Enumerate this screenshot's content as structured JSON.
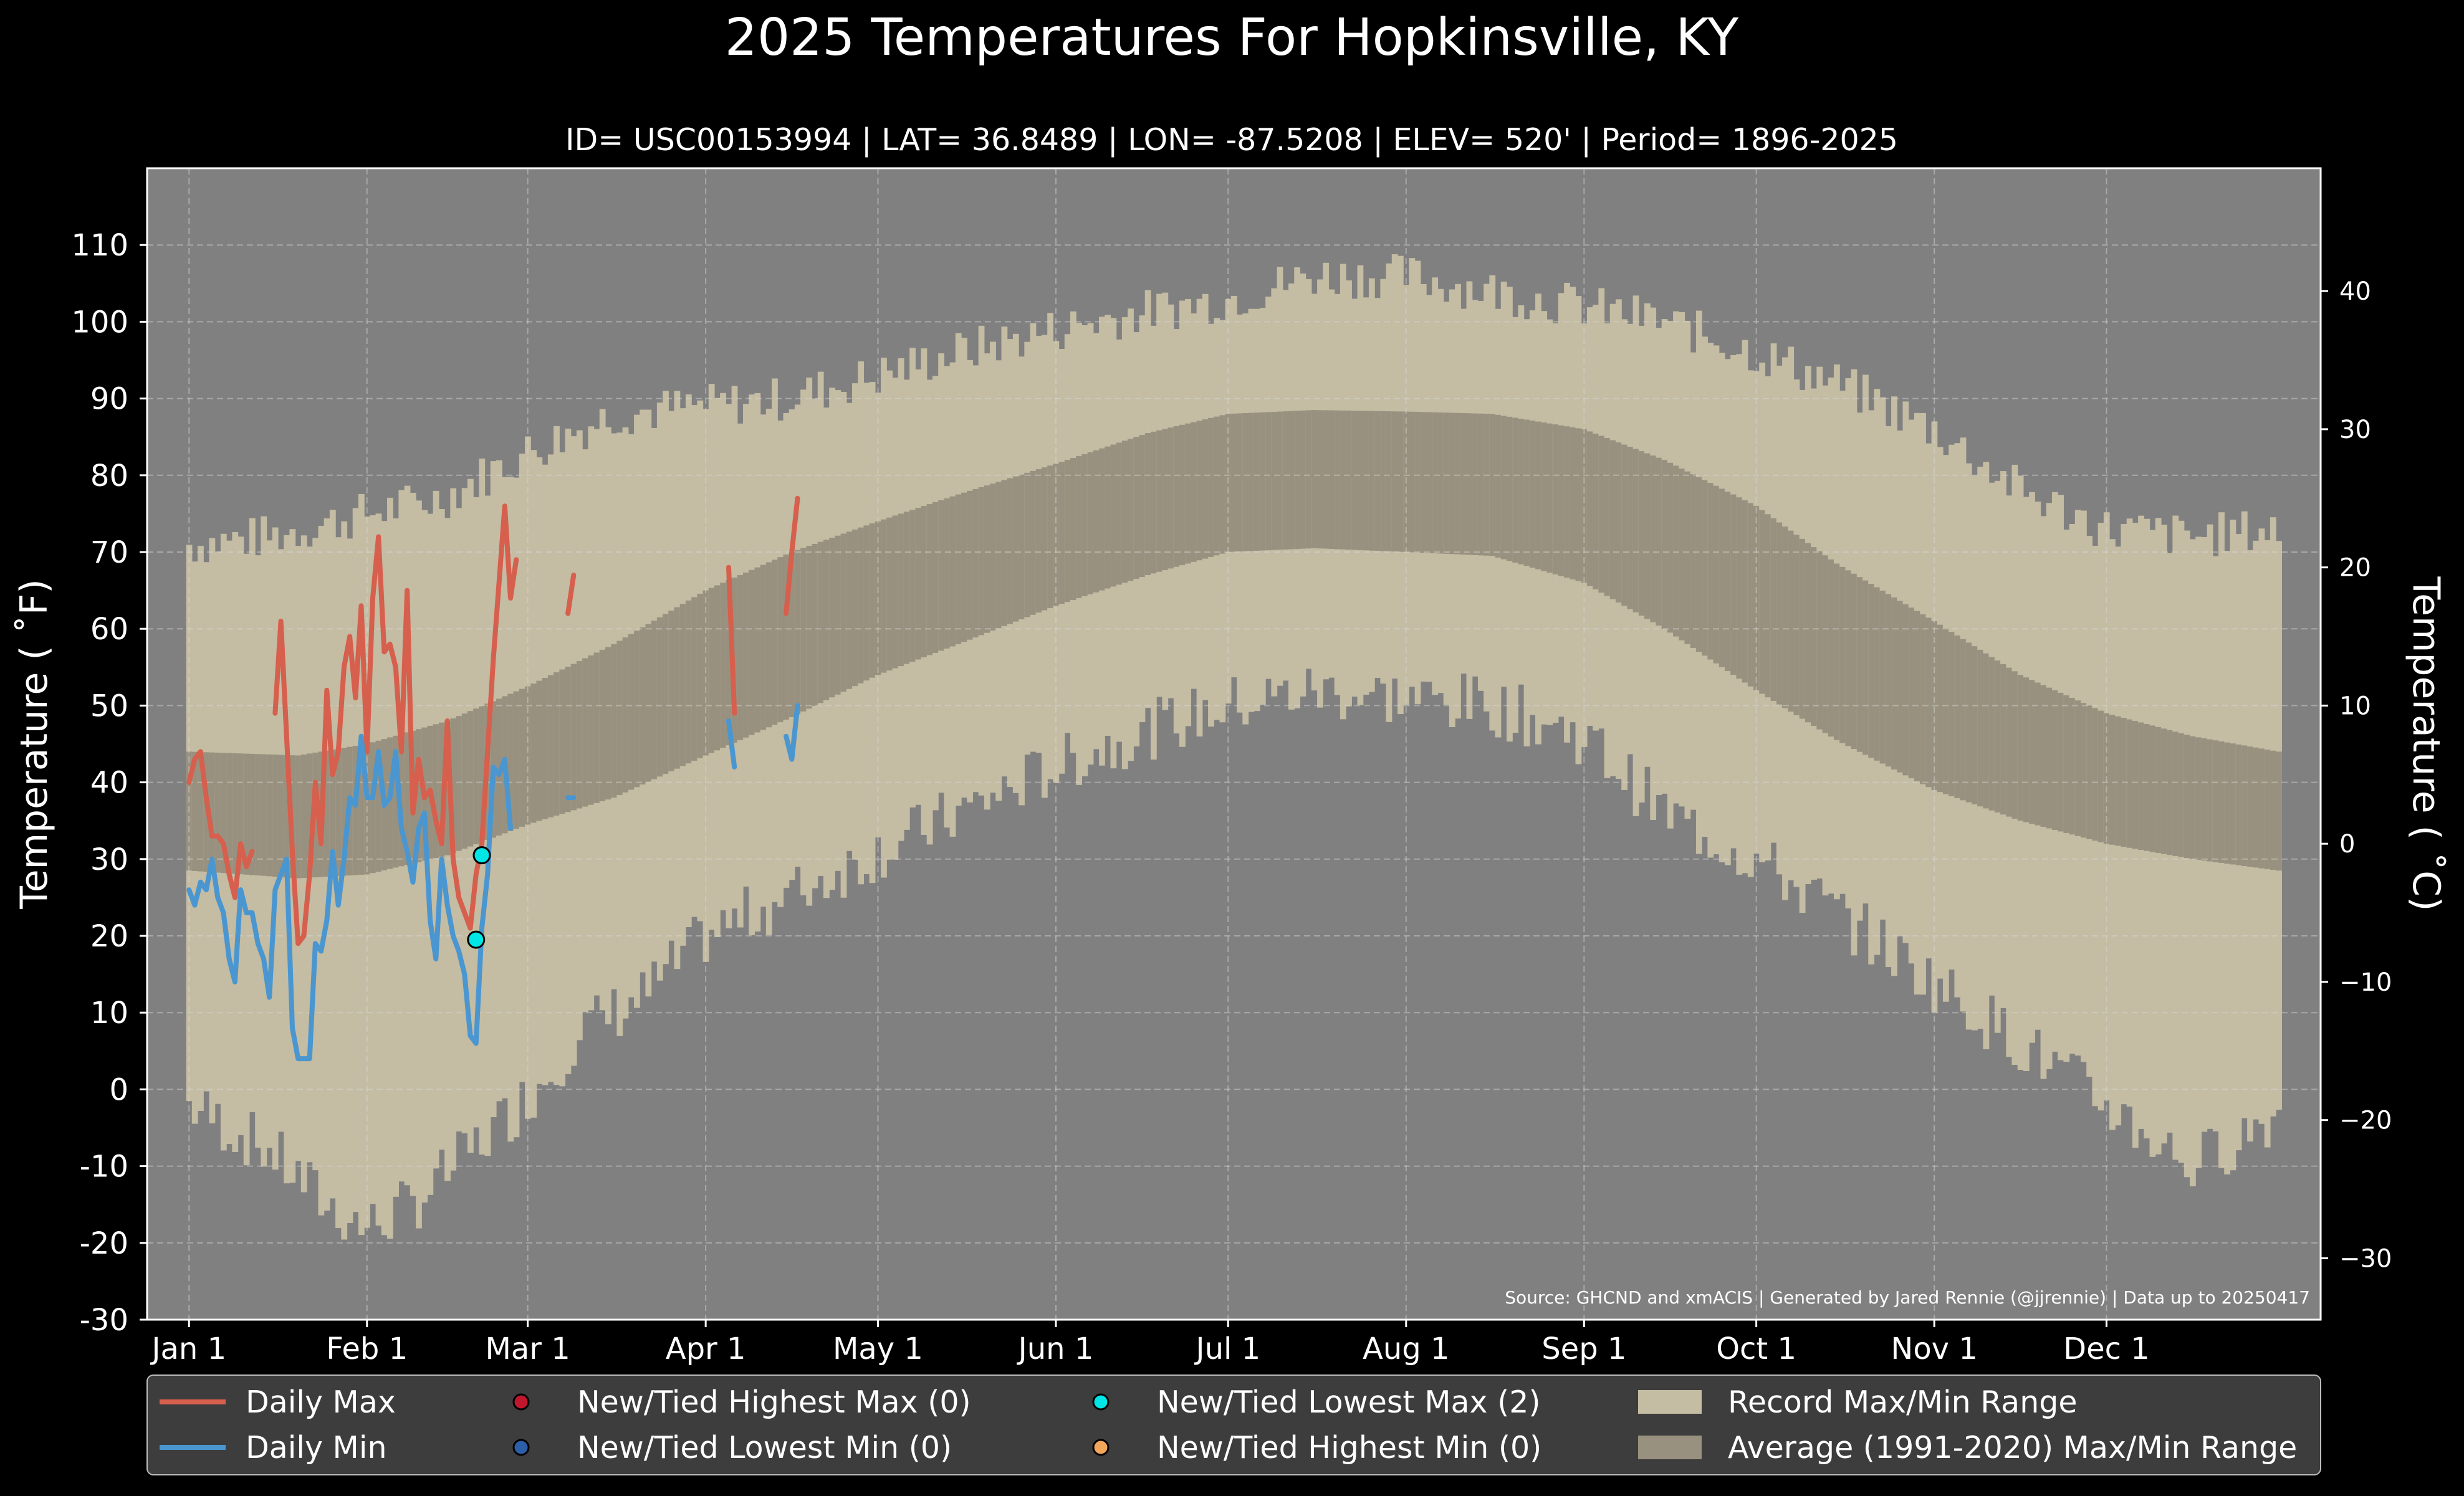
{
  "chart_data": {
    "type": "line",
    "title": "2025 Temperatures For Hopkinsville, KY",
    "subtitle": "ID= USC00153994 | LAT= 36.8489 | LON= -87.5208 | ELEV= 520' | Period= 1896-2025",
    "ylabel": "Temperature ($^\\circ$F)",
    "ylabel_display": "Temperature ( ˚F)",
    "ylabel_right": "Temperature ( ˚C)",
    "source": "Source: GHCND and xmACIS | Generated by Jared Rennie (@jjrennie) | Data up to 20250417",
    "ylim": [
      -30,
      120
    ],
    "ylim_c": [
      -34.44,
      48.89
    ],
    "grid": true,
    "x_ticks": [
      {
        "day": 1,
        "label": "Jan 1"
      },
      {
        "day": 32,
        "label": "Feb 1"
      },
      {
        "day": 60,
        "label": "Mar 1"
      },
      {
        "day": 91,
        "label": "Apr 1"
      },
      {
        "day": 121,
        "label": "May 1"
      },
      {
        "day": 152,
        "label": "Jun 1"
      },
      {
        "day": 182,
        "label": "Jul 1"
      },
      {
        "day": 213,
        "label": "Aug 1"
      },
      {
        "day": 244,
        "label": "Sep 1"
      },
      {
        "day": 274,
        "label": "Oct 1"
      },
      {
        "day": 305,
        "label": "Nov 1"
      },
      {
        "day": 335,
        "label": "Dec 1"
      }
    ],
    "y_ticks_f": [
      -30,
      -20,
      -10,
      0,
      10,
      20,
      30,
      40,
      50,
      60,
      70,
      80,
      90,
      100,
      110
    ],
    "y_ticks_c": [
      -30,
      -20,
      -10,
      0,
      10,
      20,
      30,
      40
    ],
    "record_max_knots": [
      [
        1,
        71
      ],
      [
        15,
        72
      ],
      [
        32,
        75
      ],
      [
        45,
        77
      ],
      [
        60,
        83
      ],
      [
        75,
        88
      ],
      [
        91,
        89
      ],
      [
        105,
        90
      ],
      [
        121,
        93
      ],
      [
        135,
        96
      ],
      [
        152,
        99
      ],
      [
        165,
        101
      ],
      [
        182,
        103
      ],
      [
        197,
        106
      ],
      [
        213,
        106
      ],
      [
        228,
        104
      ],
      [
        244,
        102
      ],
      [
        258,
        100
      ],
      [
        274,
        96
      ],
      [
        288,
        92
      ],
      [
        305,
        86
      ],
      [
        320,
        78
      ],
      [
        335,
        73
      ],
      [
        350,
        72
      ],
      [
        365,
        73
      ]
    ],
    "record_min_knots": [
      [
        1,
        -2
      ],
      [
        15,
        -8
      ],
      [
        25,
        -15
      ],
      [
        32,
        -18
      ],
      [
        40,
        -15
      ],
      [
        50,
        -8
      ],
      [
        60,
        -1
      ],
      [
        70,
        8
      ],
      [
        80,
        12
      ],
      [
        91,
        20
      ],
      [
        105,
        25
      ],
      [
        121,
        31
      ],
      [
        135,
        36
      ],
      [
        152,
        42
      ],
      [
        165,
        46
      ],
      [
        182,
        50
      ],
      [
        197,
        52
      ],
      [
        213,
        51
      ],
      [
        228,
        50
      ],
      [
        244,
        46
      ],
      [
        258,
        36
      ],
      [
        274,
        30
      ],
      [
        288,
        23
      ],
      [
        305,
        14
      ],
      [
        320,
        6
      ],
      [
        335,
        -2
      ],
      [
        350,
        -10
      ],
      [
        365,
        -3
      ]
    ],
    "record_jitter": 3,
    "avg_max_knots": [
      [
        1,
        44
      ],
      [
        20,
        43.5
      ],
      [
        32,
        45
      ],
      [
        46,
        48
      ],
      [
        60,
        52.5
      ],
      [
        75,
        58
      ],
      [
        91,
        65
      ],
      [
        106,
        70
      ],
      [
        121,
        74
      ],
      [
        135,
        77.5
      ],
      [
        152,
        81.5
      ],
      [
        168,
        85.5
      ],
      [
        182,
        88
      ],
      [
        197,
        88.5
      ],
      [
        213,
        88.3
      ],
      [
        228,
        88
      ],
      [
        244,
        86
      ],
      [
        258,
        82
      ],
      [
        274,
        76
      ],
      [
        288,
        68.5
      ],
      [
        305,
        61
      ],
      [
        320,
        54
      ],
      [
        335,
        49
      ],
      [
        350,
        46
      ],
      [
        365,
        44
      ]
    ],
    "avg_min_knots": [
      [
        1,
        28.5
      ],
      [
        20,
        27.5
      ],
      [
        32,
        28
      ],
      [
        46,
        30.5
      ],
      [
        60,
        34.5
      ],
      [
        75,
        38
      ],
      [
        91,
        43.5
      ],
      [
        106,
        48.5
      ],
      [
        121,
        54
      ],
      [
        135,
        58
      ],
      [
        152,
        63
      ],
      [
        168,
        67
      ],
      [
        182,
        70
      ],
      [
        197,
        70.5
      ],
      [
        213,
        70
      ],
      [
        228,
        69.5
      ],
      [
        244,
        66
      ],
      [
        258,
        60
      ],
      [
        274,
        52
      ],
      [
        288,
        45.5
      ],
      [
        305,
        39
      ],
      [
        320,
        35
      ],
      [
        335,
        32
      ],
      [
        350,
        30
      ],
      [
        365,
        28.5
      ]
    ],
    "series": [
      {
        "name": "Daily Max",
        "color": "#d65f4d",
        "segments": [
          [
            [
              1,
              40
            ],
            [
              2,
              43
            ],
            [
              3,
              44
            ],
            [
              4,
              38
            ],
            [
              5,
              33
            ],
            [
              6,
              33
            ],
            [
              7,
              32
            ],
            [
              8,
              28
            ],
            [
              9,
              25
            ],
            [
              10,
              32
            ],
            [
              11,
              29
            ],
            [
              12,
              31
            ]
          ],
          [
            [
              16,
              49
            ],
            [
              17,
              61
            ],
            [
              18,
              46
            ],
            [
              19,
              31
            ],
            [
              20,
              19
            ],
            [
              21,
              20
            ],
            [
              22,
              28
            ],
            [
              23,
              40
            ],
            [
              24,
              32
            ],
            [
              25,
              52
            ],
            [
              26,
              41
            ],
            [
              27,
              44
            ],
            [
              28,
              55
            ],
            [
              29,
              59
            ],
            [
              30,
              51
            ],
            [
              31,
              63
            ],
            [
              32,
              44
            ],
            [
              33,
              64
            ],
            [
              34,
              72
            ],
            [
              35,
              57
            ],
            [
              36,
              58
            ],
            [
              37,
              55
            ],
            [
              38,
              44
            ],
            [
              39,
              65
            ],
            [
              40,
              36
            ],
            [
              41,
              43
            ],
            [
              42,
              38
            ],
            [
              43,
              39
            ],
            [
              44,
              35
            ],
            [
              45,
              32
            ],
            [
              46,
              48
            ],
            [
              47,
              30
            ],
            [
              48,
              25
            ],
            [
              49,
              23
            ],
            [
              50,
              21
            ],
            [
              51,
              28
            ],
            [
              52,
              32
            ],
            [
              53,
              44
            ],
            [
              54,
              56
            ],
            [
              55,
              66
            ],
            [
              56,
              76
            ],
            [
              57,
              64
            ],
            [
              58,
              69
            ]
          ],
          [
            [
              67,
              62
            ],
            [
              68,
              67
            ]
          ],
          [
            [
              95,
              68
            ],
            [
              96,
              49
            ]
          ],
          [
            [
              105,
              62
            ],
            [
              106,
              70
            ],
            [
              107,
              77
            ]
          ]
        ]
      },
      {
        "name": "Daily Min",
        "color": "#4a96d0",
        "segments": [
          [
            [
              1,
              26
            ],
            [
              2,
              24
            ],
            [
              3,
              27
            ],
            [
              4,
              26
            ],
            [
              5,
              30
            ],
            [
              6,
              25
            ],
            [
              7,
              23
            ],
            [
              8,
              17
            ],
            [
              9,
              14
            ],
            [
              10,
              26
            ],
            [
              11,
              23
            ],
            [
              12,
              23
            ],
            [
              13,
              19
            ],
            [
              14,
              17
            ],
            [
              15,
              12
            ],
            [
              16,
              26
            ],
            [
              17,
              28
            ],
            [
              18,
              30
            ],
            [
              19,
              8
            ],
            [
              20,
              4
            ],
            [
              21,
              4
            ],
            [
              22,
              4
            ],
            [
              23,
              19
            ],
            [
              24,
              18
            ],
            [
              25,
              22
            ],
            [
              26,
              31
            ],
            [
              27,
              24
            ],
            [
              28,
              30
            ],
            [
              29,
              38
            ],
            [
              30,
              37
            ],
            [
              31,
              46
            ],
            [
              32,
              38
            ],
            [
              33,
              38
            ],
            [
              34,
              44
            ],
            [
              35,
              37
            ],
            [
              36,
              38
            ],
            [
              37,
              44
            ],
            [
              38,
              34
            ],
            [
              39,
              31
            ],
            [
              40,
              27
            ],
            [
              41,
              34
            ],
            [
              42,
              36
            ],
            [
              43,
              22
            ],
            [
              44,
              17
            ],
            [
              45,
              30
            ],
            [
              46,
              24
            ],
            [
              47,
              20
            ],
            [
              48,
              18
            ],
            [
              49,
              15
            ],
            [
              50,
              7
            ],
            [
              51,
              6
            ],
            [
              52,
              21
            ],
            [
              53,
              28
            ],
            [
              54,
              42
            ],
            [
              55,
              41
            ],
            [
              56,
              43
            ],
            [
              57,
              34
            ]
          ],
          [
            [
              67,
              38
            ],
            [
              68,
              38
            ]
          ],
          [
            [
              95,
              48
            ],
            [
              96,
              42
            ]
          ],
          [
            [
              105,
              46
            ],
            [
              106,
              43
            ],
            [
              107,
              50
            ]
          ]
        ]
      }
    ],
    "markers": [
      {
        "type": "New/Tied Lowest Max",
        "day": 52,
        "value": 30.5,
        "color": "#00e5e5"
      },
      {
        "type": "New/Tied Lowest Max",
        "day": 51,
        "value": 19.5,
        "color": "#00e5e5"
      }
    ],
    "legend": [
      {
        "label": "Daily Max",
        "kind": "line",
        "color": "#d65f4d"
      },
      {
        "label": "Daily Min",
        "kind": "line",
        "color": "#4a96d0"
      },
      {
        "label": "New/Tied Highest Max (0)",
        "kind": "dot",
        "color": "#c0172e"
      },
      {
        "label": "New/Tied Lowest Min (0)",
        "kind": "dot",
        "color": "#2c5fa8"
      },
      {
        "label": "New/Tied Lowest Max (2)",
        "kind": "dot",
        "color": "#00e5e5"
      },
      {
        "label": "New/Tied Highest Min (0)",
        "kind": "dot",
        "color": "#f2a65a"
      },
      {
        "label": "Record Max/Min Range",
        "kind": "patch",
        "color": "#c4bca3"
      },
      {
        "label": "Average (1991-2020) Max/Min Range",
        "kind": "patch",
        "color": "#99917f"
      }
    ],
    "legend_position": "bottom",
    "colors": {
      "background": "#000000",
      "plot_background": "#808080",
      "record_band": "#c4bca3",
      "average_band": "#99917f",
      "legend_background": "#3d3d3d"
    }
  }
}
